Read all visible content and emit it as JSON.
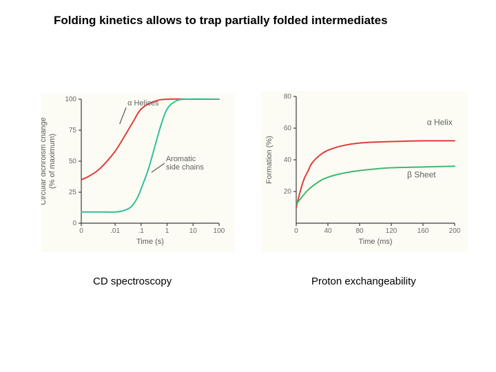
{
  "title": "Folding kinetics allows to trap partially folded intermediates",
  "left_chart": {
    "type": "line",
    "caption": "CD spectroscopy",
    "x_axis_label": "Time (s)",
    "y_axis_label": "Circular dichroism change\n(% of maximum)",
    "xscale": "log",
    "xlim": [
      0.0005,
      100
    ],
    "ylim": [
      0,
      100
    ],
    "xticks": [
      {
        "pos": 0,
        "label": "0"
      },
      {
        "pos": 0.01,
        "label": ".01"
      },
      {
        "pos": 0.1,
        "label": ".1"
      },
      {
        "pos": 1,
        "label": "1"
      },
      {
        "pos": 10,
        "label": "10"
      },
      {
        "pos": 100,
        "label": "100"
      }
    ],
    "yticks": [
      0,
      25,
      50,
      75,
      100
    ],
    "tick_fontsize": 10,
    "label_fontsize": 11,
    "series": [
      {
        "name": "α Helices",
        "label": "α Helices",
        "color": "#e23a3a",
        "stroke_width": 2,
        "label_xy": [
          0.03,
          95
        ],
        "pointer_to_xy": [
          0.015,
          80
        ],
        "points": [
          [
            0.0005,
            35
          ],
          [
            0.001,
            38
          ],
          [
            0.002,
            42
          ],
          [
            0.004,
            48
          ],
          [
            0.01,
            58
          ],
          [
            0.02,
            68
          ],
          [
            0.05,
            82
          ],
          [
            0.1,
            92
          ],
          [
            0.3,
            98
          ],
          [
            1,
            100
          ],
          [
            10,
            100
          ],
          [
            100,
            100
          ]
        ]
      },
      {
        "name": "Aromatic side chains",
        "label": "Aromatic\nside chains",
        "color": "#2fbf9a",
        "stroke_width": 2,
        "label_xy": [
          0.9,
          50
        ],
        "pointer_to_xy": [
          0.25,
          41
        ],
        "points": [
          [
            0.0005,
            9
          ],
          [
            0.005,
            9
          ],
          [
            0.01,
            9
          ],
          [
            0.02,
            10
          ],
          [
            0.04,
            13
          ],
          [
            0.07,
            20
          ],
          [
            0.12,
            32
          ],
          [
            0.2,
            45
          ],
          [
            0.35,
            63
          ],
          [
            0.6,
            80
          ],
          [
            1,
            92
          ],
          [
            2,
            98
          ],
          [
            5,
            100
          ],
          [
            100,
            100
          ]
        ]
      }
    ],
    "background_color": "#fcfcf4",
    "axis_color": "#3c3c3c",
    "series_label_fontsize": 11
  },
  "right_chart": {
    "type": "line",
    "caption": "Proton exchangeability",
    "x_axis_label": "Time (ms)",
    "y_axis_label": "Formation (%)",
    "xscale": "linear",
    "xlim": [
      0,
      200
    ],
    "ylim": [
      0,
      80
    ],
    "xticks": [
      0,
      40,
      80,
      120,
      160,
      200
    ],
    "yticks": [
      20,
      40,
      60,
      80
    ],
    "tick_fontsize": 10,
    "label_fontsize": 11,
    "series": [
      {
        "name": "α Helix",
        "label": "α Helix",
        "color": "#e23a3a",
        "stroke_width": 2,
        "label_xy": [
          165,
          62
        ],
        "points": [
          [
            0,
            10
          ],
          [
            5,
            20
          ],
          [
            10,
            28
          ],
          [
            15,
            33
          ],
          [
            20,
            38
          ],
          [
            30,
            43
          ],
          [
            40,
            46
          ],
          [
            55,
            48.5
          ],
          [
            70,
            50
          ],
          [
            90,
            51
          ],
          [
            120,
            51.5
          ],
          [
            160,
            52
          ],
          [
            200,
            52
          ]
        ]
      },
      {
        "name": "β Sheet",
        "label": "β Sheet",
        "color": "#3eb86e",
        "stroke_width": 2,
        "label_xy": [
          140,
          29
        ],
        "points": [
          [
            0,
            12
          ],
          [
            8,
            17
          ],
          [
            15,
            21
          ],
          [
            25,
            25
          ],
          [
            35,
            28
          ],
          [
            50,
            30.5
          ],
          [
            70,
            32.5
          ],
          [
            95,
            34
          ],
          [
            120,
            35
          ],
          [
            160,
            35.5
          ],
          [
            200,
            36
          ]
        ]
      }
    ],
    "background_color": "#fcfcf4",
    "axis_color": "#3c3c3c",
    "series_label_fontsize": 12
  }
}
